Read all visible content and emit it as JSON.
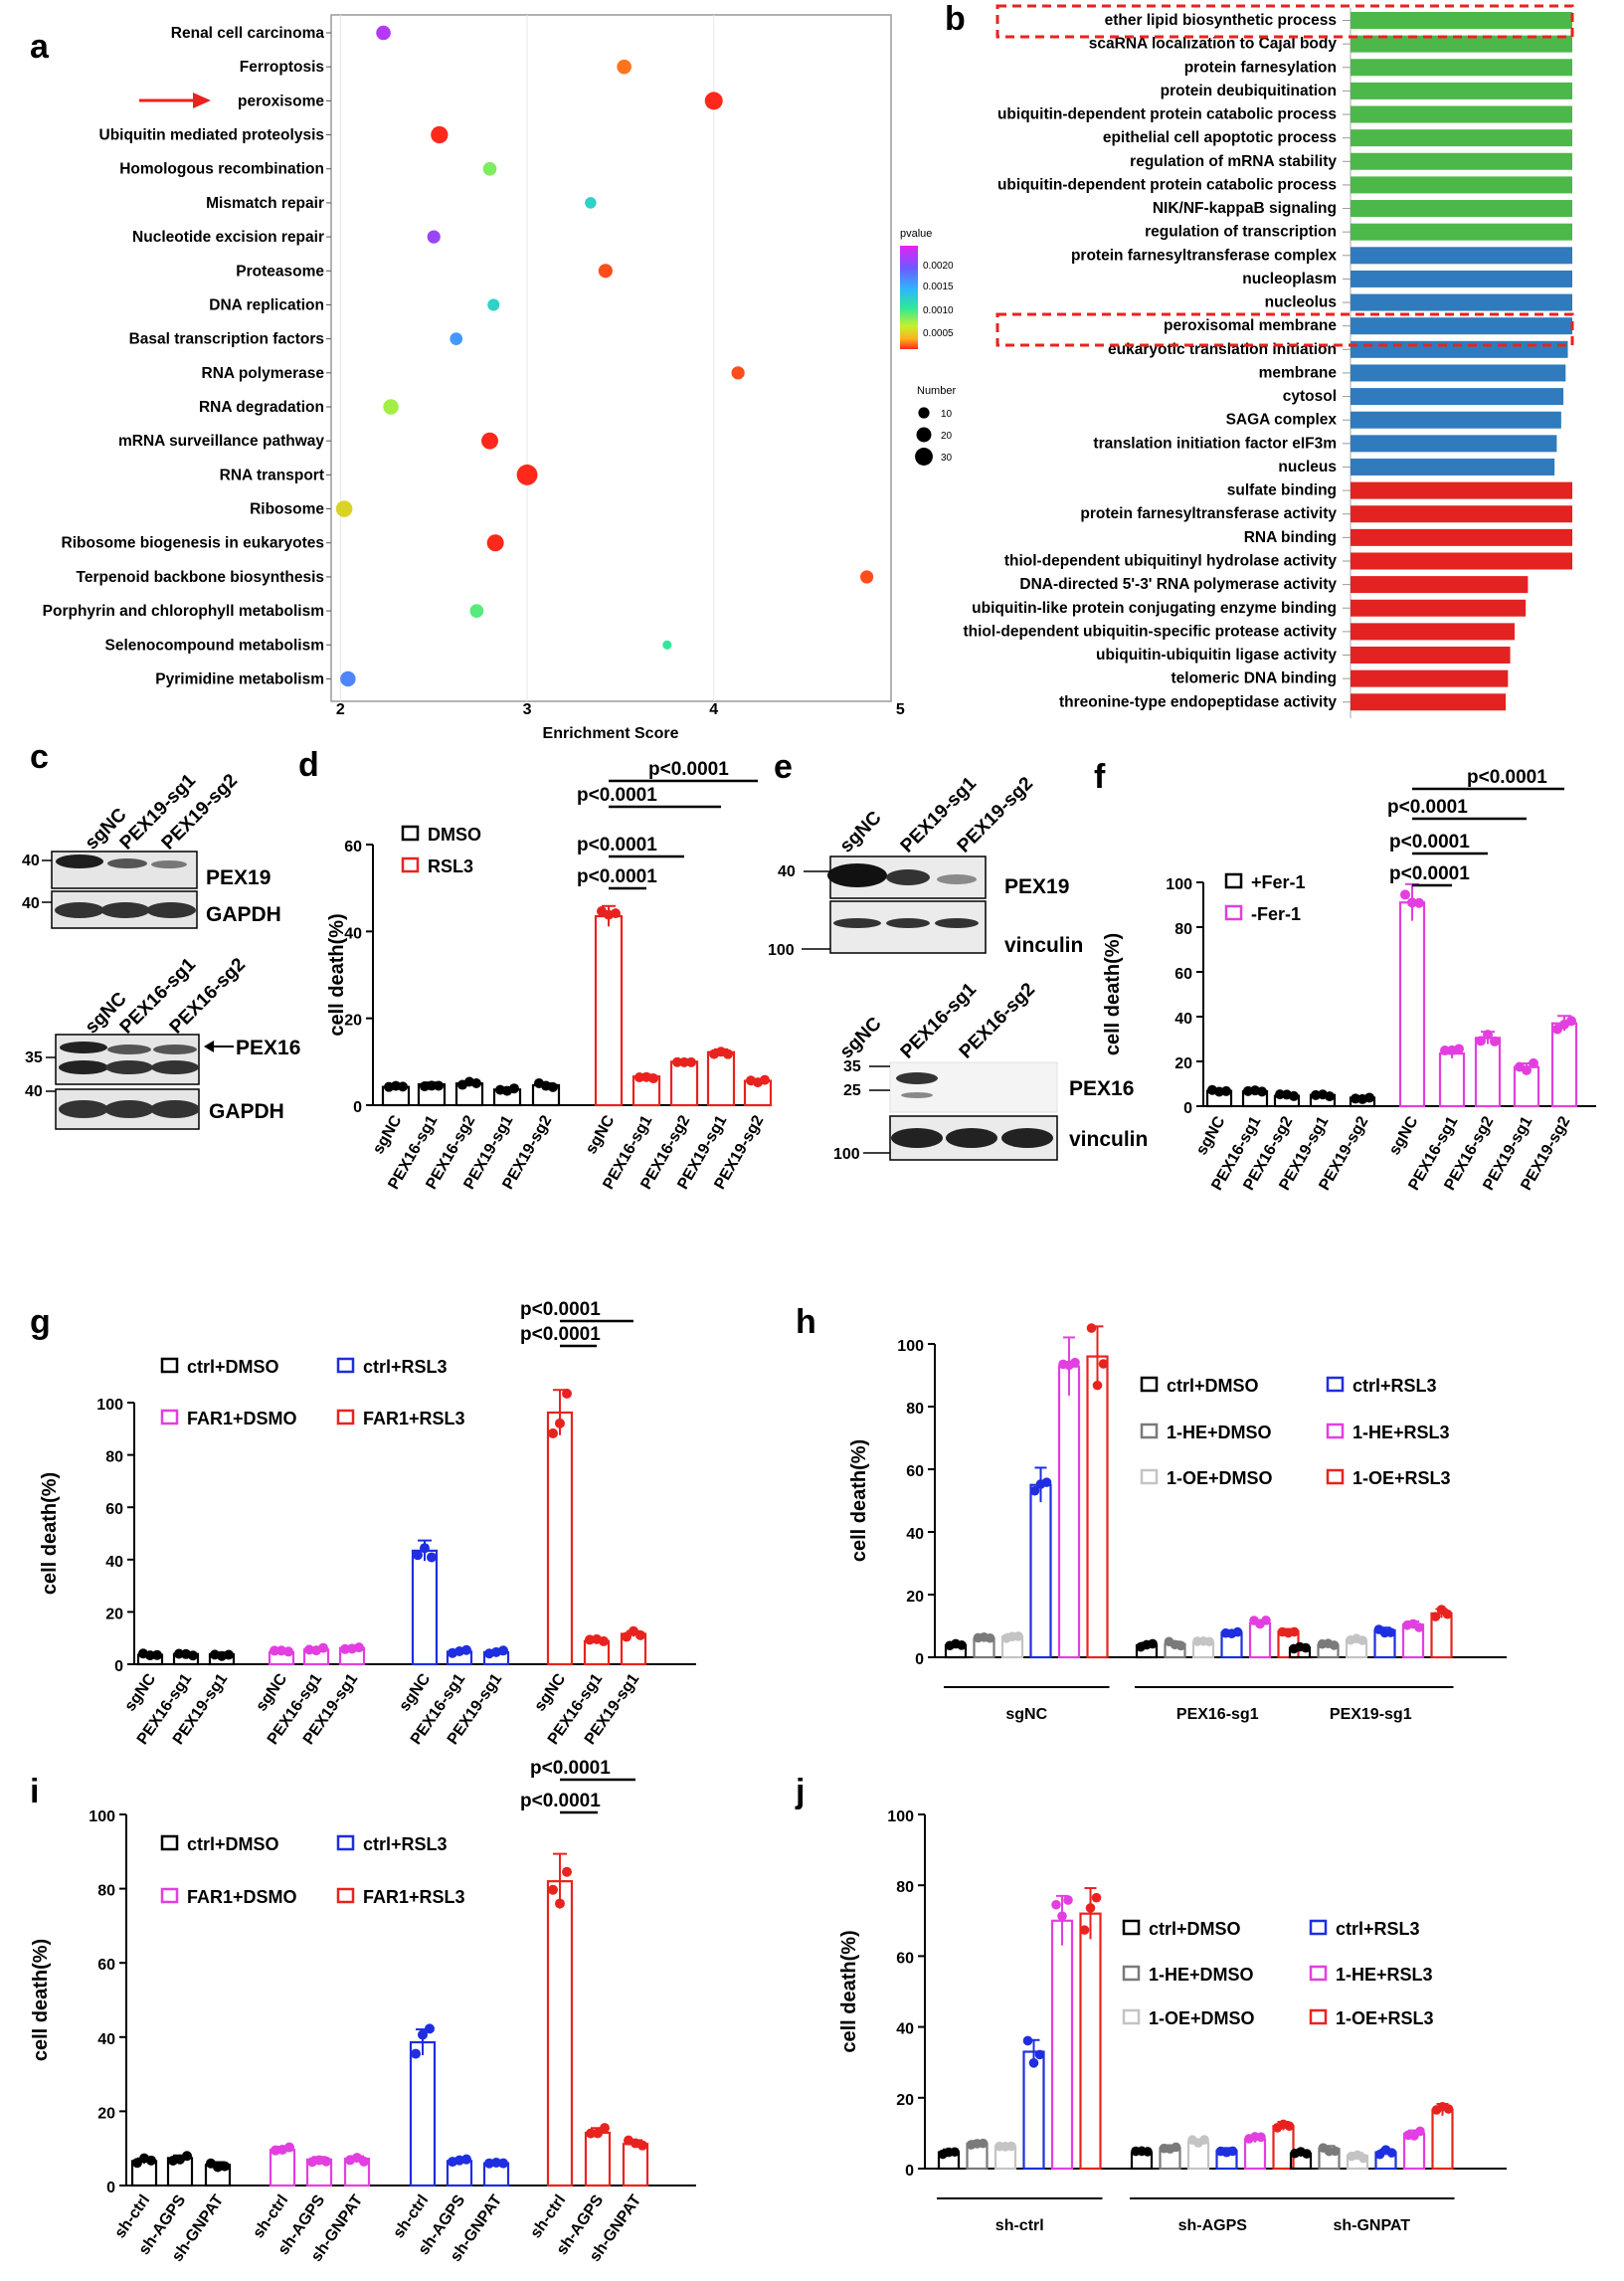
{
  "panels": [
    {
      "id": "a",
      "label": "a"
    },
    {
      "id": "b",
      "label": "b"
    },
    {
      "id": "c",
      "label": "c"
    },
    {
      "id": "d",
      "label": "d"
    },
    {
      "id": "e",
      "label": "e"
    },
    {
      "id": "f",
      "label": "f"
    },
    {
      "id": "g",
      "label": "g"
    },
    {
      "id": "h",
      "label": "h"
    },
    {
      "id": "i",
      "label": "i"
    },
    {
      "id": "j",
      "label": "j"
    }
  ],
  "chart_data": [
    {
      "panel": "a",
      "type": "scatter",
      "xlabel": "Enrichment Score",
      "xticks": [
        "2",
        "3",
        "4",
        "5"
      ],
      "xlim": [
        1.95,
        4.95
      ],
      "highlight": "peroxisome",
      "categories": [
        "Renal cell carcinoma",
        "Ferroptosis",
        "peroxisome",
        "Ubiquitin mediated proteolysis",
        "Homologous recombination",
        "Mismatch repair",
        "Nucleotide excision repair",
        "Proteasome",
        "DNA replication",
        "Basal transcription factors",
        "RNA polymerase",
        "RNA degradation",
        "mRNA surveillance pathway",
        "RNA transport",
        "Ribosome",
        "Ribosome biogenesis in eukaryotes",
        "Terpenoid backbone biosynthesis",
        "Porphyrin and chlorophyll metabolism",
        "Selenocompound metabolism",
        "Pyrimidine metabolism"
      ],
      "x": [
        2.23,
        3.52,
        4.0,
        2.53,
        2.8,
        3.34,
        2.5,
        3.42,
        2.82,
        2.62,
        4.13,
        2.27,
        2.8,
        3.0,
        2.02,
        2.83,
        4.82,
        2.73,
        3.75,
        2.04
      ],
      "number": [
        11,
        11,
        20,
        18,
        9,
        5,
        8,
        10,
        6,
        7,
        8,
        13,
        17,
        30,
        16,
        17,
        8,
        9,
        2,
        13
      ],
      "pvalue": [
        0.0023,
        0.0003,
        0.0001,
        0.0001,
        0.0009,
        0.0013,
        0.0022,
        0.0002,
        0.0013,
        0.0017,
        0.0002,
        0.0008,
        0.0001,
        0.0001,
        0.0006,
        0.0001,
        0.0002,
        0.001,
        0.0011,
        0.0018
      ],
      "legend": {
        "color_title": "pvalue",
        "color_ticks": [
          "0.0020",
          "0.0015",
          "0.0010",
          "0.0005"
        ],
        "size_title": "Number",
        "size_ticks": [
          "10",
          "20",
          "30"
        ]
      }
    },
    {
      "panel": "b",
      "type": "bar",
      "orientation": "horizontal",
      "highlighted": [
        "ether lipid biosynthetic process",
        "peroxisomal membrane"
      ],
      "categories": [
        "ether lipid biosynthetic process",
        "scaRNA localization to Cajal body",
        "protein farnesylation",
        "protein deubiquitination",
        "ubiquitin-dependent protein catabolic process",
        "epithelial cell apoptotic process",
        "regulation of mRNA stability",
        "ubiquitin-dependent protein catabolic process",
        "NIK/NF-kappaB signaling",
        "regulation of transcription",
        "protein farnesyltransferase complex",
        "nucleoplasm",
        "nucleolus",
        "peroxisomal membrane",
        "eukaryotic translation initiation",
        "membrane",
        "cytosol",
        "SAGA complex",
        "translation initiation factor eIF3m",
        "nucleus",
        "sulfate binding",
        "protein farnesyltransferase activity",
        "RNA binding",
        "thiol-dependent ubiquitinyl hydrolase activity",
        "DNA-directed 5'-3' RNA polymerase activity",
        "ubiquitin-like protein conjugating enzyme binding",
        "thiol-dependent ubiquitin-specific protease activity",
        "ubiquitin-ubiquitin ligase activity",
        "telomeric DNA binding",
        "threonine-type endopeptidase activity"
      ],
      "values": [
        1,
        1,
        1,
        1,
        1,
        1,
        1,
        1,
        1,
        1,
        1,
        1,
        1,
        1,
        0.98,
        0.97,
        0.96,
        0.95,
        0.93,
        0.92,
        1,
        1,
        1,
        1,
        0.8,
        0.79,
        0.74,
        0.72,
        0.71,
        0.7
      ],
      "groups": [
        "BP",
        "BP",
        "BP",
        "BP",
        "BP",
        "BP",
        "BP",
        "BP",
        "BP",
        "BP",
        "CC",
        "CC",
        "CC",
        "CC",
        "CC",
        "CC",
        "CC",
        "CC",
        "CC",
        "CC",
        "MF",
        "MF",
        "MF",
        "MF",
        "MF",
        "MF",
        "MF",
        "MF",
        "MF",
        "MF"
      ],
      "group_colors": {
        "BP": "#4cb84a",
        "CC": "#2f7bbd",
        "MF": "#e32222"
      }
    },
    {
      "panel": "d",
      "type": "bar",
      "ylabel": "cell death(%)",
      "ylim": [
        0,
        60
      ],
      "yticks": [
        "0",
        "20",
        "40",
        "60"
      ],
      "categories": [
        "sgNC",
        "PEX16-sg1",
        "PEX16-sg2",
        "PEX19-sg1",
        "PEX19-sg2",
        "sgNC",
        "PEX16-sg1",
        "PEX16-sg2",
        "PEX19-sg1",
        "PEX19-sg2"
      ],
      "groups": [
        "DMSO",
        "DMSO",
        "DMSO",
        "DMSO",
        "DMSO",
        "RSL3",
        "RSL3",
        "RSL3",
        "RSL3",
        "RSL3"
      ],
      "values": [
        4.2,
        4.8,
        5.0,
        3.6,
        4.6,
        43.5,
        6.6,
        10.0,
        12.2,
        5.6
      ],
      "series": [
        {
          "name": "DMSO",
          "color": "#000000"
        },
        {
          "name": "RSL3",
          "color": "#e8231f"
        }
      ],
      "pvalues": [
        "p<0.0001",
        "p<0.0001",
        "p<0.0001",
        "p<0.0001"
      ]
    },
    {
      "panel": "f",
      "type": "bar",
      "ylabel": "cell death(%)",
      "ylim": [
        0,
        100
      ],
      "yticks": [
        "0",
        "20",
        "40",
        "60",
        "80",
        "100"
      ],
      "categories": [
        "sgNC",
        "PEX16-sg1",
        "PEX16-sg2",
        "PEX19-sg1",
        "PEX19-sg2",
        "sgNC",
        "PEX16-sg1",
        "PEX16-sg2",
        "PEX19-sg1",
        "PEX19-sg2"
      ],
      "groups": [
        "+Fer-1",
        "+Fer-1",
        "+Fer-1",
        "+Fer-1",
        "+Fer-1",
        "-Fer-1",
        "-Fer-1",
        "-Fer-1",
        "-Fer-1",
        "-Fer-1"
      ],
      "values": [
        6.8,
        6.6,
        4.6,
        5.0,
        3.8,
        91.0,
        23.5,
        30.5,
        17.5,
        37.0
      ],
      "series": [
        {
          "name": "+Fer-1",
          "color": "#000000"
        },
        {
          "name": "-Fer-1",
          "color": "#e33fe0"
        }
      ],
      "pvalues": [
        "p<0.0001",
        "p<0.0001",
        "p<0.0001",
        "p<0.0001"
      ]
    },
    {
      "panel": "g",
      "type": "bar",
      "ylabel": "cell death(%)",
      "ylim": [
        0,
        100
      ],
      "yticks": [
        "0",
        "20",
        "40",
        "60",
        "80",
        "100"
      ],
      "categories": [
        "sgNC",
        "PEX16-sg1",
        "PEX19-sg1",
        "sgNC",
        "PEX16-sg1",
        "PEX19-sg1",
        "sgNC",
        "PEX16-sg1",
        "PEX19-sg1",
        "sgNC",
        "PEX16-sg1",
        "PEX19-sg1"
      ],
      "groups": [
        "ctrl+DMSO",
        "ctrl+DMSO",
        "ctrl+DMSO",
        "FAR1+DSMO",
        "FAR1+DSMO",
        "FAR1+DSMO",
        "ctrl+RSL3",
        "ctrl+RSL3",
        "ctrl+RSL3",
        "FAR1+RSL3",
        "FAR1+RSL3",
        "FAR1+RSL3"
      ],
      "values": [
        3.6,
        3.9,
        3.8,
        4.6,
        5.6,
        6.2,
        43.4,
        4.8,
        4.6,
        96.2,
        8.8,
        11.6
      ],
      "series": [
        {
          "name": "ctrl+DMSO",
          "color": "#000000"
        },
        {
          "name": "FAR1+DSMO",
          "color": "#e33fe0"
        },
        {
          "name": "ctrl+RSL3",
          "color": "#1f2ee0"
        },
        {
          "name": "FAR1+RSL3",
          "color": "#e8231f"
        }
      ],
      "pvalues": [
        "p<0.0001",
        "p<0.0001"
      ]
    },
    {
      "panel": "h",
      "type": "bar",
      "ylabel": "cell death(%)",
      "ylim": [
        0,
        100
      ],
      "yticks": [
        "0",
        "20",
        "40",
        "60",
        "80",
        "100"
      ],
      "group_labels": [
        "sgNC",
        "PEX16-sg1",
        "PEX19-sg1"
      ],
      "series": [
        {
          "name": "ctrl+DMSO",
          "color": "#000000",
          "values": [
            3.8,
            3.8,
            3.0
          ]
        },
        {
          "name": "1-HE+DMSO",
          "color": "#7a7a7a",
          "values": [
            6.0,
            4.2,
            3.8
          ]
        },
        {
          "name": "1-OE+DMSO",
          "color": "#c4c4c4",
          "values": [
            6.6,
            4.6,
            5.4
          ]
        },
        {
          "name": "ctrl+RSL3",
          "color": "#1f2ee0",
          "values": [
            55.0,
            7.8,
            8.6
          ]
        },
        {
          "name": "1-HE+RSL3",
          "color": "#e33fe0",
          "values": [
            92.8,
            10.8,
            10.4
          ]
        },
        {
          "name": "1-OE+RSL3",
          "color": "#e8231f",
          "values": [
            96.0,
            8.2,
            14.0
          ]
        }
      ]
    },
    {
      "panel": "i",
      "type": "bar",
      "ylabel": "cell death(%)",
      "ylim": [
        0,
        100
      ],
      "yticks": [
        "0",
        "20",
        "40",
        "60",
        "80",
        "100"
      ],
      "categories": [
        "sh-ctrl",
        "sh-AGPS",
        "sh-GNPAT",
        "sh-ctrl",
        "sh-AGPS",
        "sh-GNPAT",
        "sh-ctrl",
        "sh-AGPS",
        "sh-GNPAT",
        "sh-ctrl",
        "sh-AGPS",
        "sh-GNPAT"
      ],
      "groups": [
        "ctrl+DMSO",
        "ctrl+DMSO",
        "ctrl+DMSO",
        "FAR1+DSMO",
        "FAR1+DSMO",
        "FAR1+DSMO",
        "ctrl+RSL3",
        "ctrl+RSL3",
        "ctrl+RSL3",
        "FAR1+RSL3",
        "FAR1+RSL3",
        "FAR1+RSL3"
      ],
      "values": [
        6.6,
        7.4,
        5.6,
        9.6,
        7.0,
        7.2,
        38.6,
        6.6,
        6.0,
        82.0,
        14.2,
        11.2
      ],
      "series": [
        {
          "name": "ctrl+DMSO",
          "color": "#000000"
        },
        {
          "name": "FAR1+DSMO",
          "color": "#e33fe0"
        },
        {
          "name": "ctrl+RSL3",
          "color": "#1f2ee0"
        },
        {
          "name": "FAR1+RSL3",
          "color": "#e8231f"
        }
      ],
      "pvalues": [
        "p<0.0001",
        "p<0.0001"
      ]
    },
    {
      "panel": "j",
      "type": "bar",
      "ylabel": "cell death(%)",
      "ylim": [
        0,
        100
      ],
      "yticks": [
        "0",
        "20",
        "40",
        "60",
        "80",
        "100"
      ],
      "group_labels": [
        "sh-ctrl",
        "sh-AGPS",
        "sh-GNPAT"
      ],
      "series": [
        {
          "name": "ctrl+DMSO",
          "color": "#000000",
          "values": [
            4.6,
            4.4,
            4.2
          ]
        },
        {
          "name": "1-HE+DMSO",
          "color": "#7a7a7a",
          "values": [
            7.0,
            5.8,
            5.6
          ]
        },
        {
          "name": "1-OE+DMSO",
          "color": "#c4c4c4",
          "values": [
            6.2,
            7.4,
            3.6
          ]
        },
        {
          "name": "ctrl+RSL3",
          "color": "#1f2ee0",
          "values": [
            33.0,
            5.0,
            4.6
          ]
        },
        {
          "name": "1-HE+RSL3",
          "color": "#e33fe0",
          "values": [
            70.0,
            8.2,
            9.8
          ]
        },
        {
          "name": "1-OE+RSL3",
          "color": "#e8231f",
          "values": [
            72.0,
            12.0,
            16.6
          ]
        }
      ]
    }
  ],
  "blots": {
    "c_top": {
      "lanes": [
        "sgNC",
        "PEX19-sg1",
        "PEX19-sg2"
      ],
      "markers": [
        "40",
        "40"
      ],
      "bands": [
        "PEX19",
        "GAPDH"
      ]
    },
    "c_bottom": {
      "lanes": [
        "sgNC",
        "PEX16-sg1",
        "PEX16-sg2"
      ],
      "markers": [
        "35",
        "40"
      ],
      "bands": [
        "PEX16",
        "GAPDH"
      ]
    },
    "e_top": {
      "lanes": [
        "sgNC",
        "PEX19-sg1",
        "PEX19-sg2"
      ],
      "markers": [
        "40",
        "100"
      ],
      "bands": [
        "PEX19",
        "vinculin"
      ]
    },
    "e_bottom": {
      "lanes": [
        "sgNC",
        "PEX16-sg1",
        "PEX16-sg2"
      ],
      "markers": [
        "35",
        "25",
        "100"
      ],
      "bands": [
        "PEX16",
        "vinculin"
      ]
    }
  }
}
